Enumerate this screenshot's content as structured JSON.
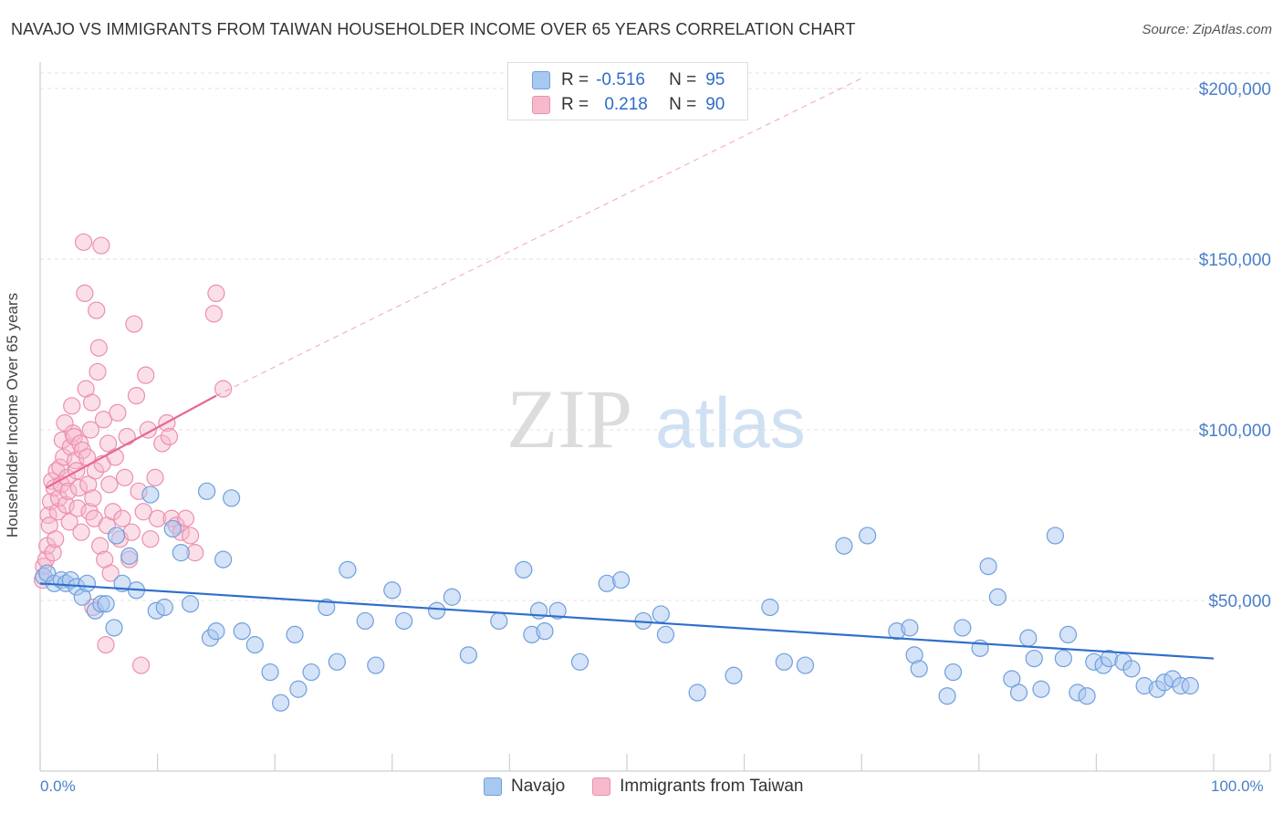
{
  "header": {
    "title": "NAVAJO VS IMMIGRANTS FROM TAIWAN HOUSEHOLDER INCOME OVER 65 YEARS CORRELATION CHART",
    "source": "Source: ZipAtlas.com"
  },
  "watermark": {
    "zip": "ZIP",
    "atlas": "atlas"
  },
  "legend_top": {
    "rows": [
      {
        "r_label": "R =",
        "r_value": "-0.516",
        "n_label": "N =",
        "n_value": "95"
      },
      {
        "r_label": "R =",
        "r_value": "0.218",
        "n_label": "N =",
        "n_value": "90"
      }
    ]
  },
  "legend_bottom": {
    "navajo": "Navajo",
    "taiwan": "Immigrants from Taiwan"
  },
  "axes": {
    "x_min_label": "0.0%",
    "x_max_label": "100.0%"
  },
  "colors": {
    "navajo_fill": "#a9c8ef",
    "navajo_stroke": "#6f9fdc",
    "navajo_line": "#2f6fcb",
    "taiwan_fill": "#f6b9cb",
    "taiwan_stroke": "#ec8fae",
    "taiwan_line": "#e8688f",
    "grid": "#e3e3e3",
    "tick_label": "#4a7fc9"
  },
  "chart_data": {
    "type": "scatter",
    "title": "NAVAJO VS IMMIGRANTS FROM TAIWAN HOUSEHOLDER INCOME OVER 65 YEARS CORRELATION CHART",
    "xlabel": "",
    "ylabel": "Householder Income Over 65 years",
    "xlim": [
      0,
      100
    ],
    "ylim": [
      0,
      200000
    ],
    "y_ticks": [
      50000,
      100000,
      150000,
      200000
    ],
    "y_tick_labels": [
      "$50,000",
      "$100,000",
      "$150,000",
      "$200,000"
    ],
    "x_tick_labels": [
      "0.0%",
      "100.0%"
    ],
    "grid": true,
    "legend_position": "top-center",
    "series": [
      {
        "name": "Navajo",
        "r": -0.516,
        "n": 95,
        "trend": {
          "x": [
            0,
            100
          ],
          "y": [
            55000,
            33000
          ]
        },
        "points": [
          [
            0.3,
            57000
          ],
          [
            0.6,
            58000
          ],
          [
            1.2,
            55000
          ],
          [
            1.8,
            56000
          ],
          [
            2.2,
            55000
          ],
          [
            2.6,
            56000
          ],
          [
            3.1,
            54000
          ],
          [
            3.6,
            51000
          ],
          [
            4,
            55000
          ],
          [
            4.7,
            47000
          ],
          [
            5.2,
            49000
          ],
          [
            5.6,
            49000
          ],
          [
            6.3,
            42000
          ],
          [
            6.5,
            69000
          ],
          [
            7,
            55000
          ],
          [
            7.6,
            63000
          ],
          [
            8.2,
            53000
          ],
          [
            9.4,
            81000
          ],
          [
            9.9,
            47000
          ],
          [
            10.6,
            48000
          ],
          [
            11.3,
            71000
          ],
          [
            12,
            64000
          ],
          [
            12.8,
            49000
          ],
          [
            14.2,
            82000
          ],
          [
            14.5,
            39000
          ],
          [
            15,
            41000
          ],
          [
            15.6,
            62000
          ],
          [
            16.3,
            80000
          ],
          [
            17.2,
            41000
          ],
          [
            18.3,
            37000
          ],
          [
            19.6,
            29000
          ],
          [
            20.5,
            20000
          ],
          [
            21.7,
            40000
          ],
          [
            22,
            24000
          ],
          [
            23.1,
            29000
          ],
          [
            24.4,
            48000
          ],
          [
            25.3,
            32000
          ],
          [
            26.2,
            59000
          ],
          [
            27.7,
            44000
          ],
          [
            28.6,
            31000
          ],
          [
            30,
            53000
          ],
          [
            31,
            44000
          ],
          [
            33.8,
            47000
          ],
          [
            35.1,
            51000
          ],
          [
            36.5,
            34000
          ],
          [
            39.1,
            44000
          ],
          [
            41.2,
            59000
          ],
          [
            41.9,
            40000
          ],
          [
            42.5,
            47000
          ],
          [
            43,
            41000
          ],
          [
            44.1,
            47000
          ],
          [
            46,
            32000
          ],
          [
            48.3,
            55000
          ],
          [
            49.5,
            56000
          ],
          [
            51.4,
            44000
          ],
          [
            52.9,
            46000
          ],
          [
            53.3,
            40000
          ],
          [
            56,
            23000
          ],
          [
            59.1,
            28000
          ],
          [
            62.2,
            48000
          ],
          [
            63.4,
            32000
          ],
          [
            65.2,
            31000
          ],
          [
            68.5,
            66000
          ],
          [
            70.5,
            69000
          ],
          [
            73,
            41000
          ],
          [
            74.1,
            42000
          ],
          [
            74.5,
            34000
          ],
          [
            74.9,
            30000
          ],
          [
            77.3,
            22000
          ],
          [
            77.8,
            29000
          ],
          [
            78.6,
            42000
          ],
          [
            80.1,
            36000
          ],
          [
            80.8,
            60000
          ],
          [
            81.6,
            51000
          ],
          [
            82.8,
            27000
          ],
          [
            83.4,
            23000
          ],
          [
            84.2,
            39000
          ],
          [
            84.7,
            33000
          ],
          [
            85.3,
            24000
          ],
          [
            86.5,
            69000
          ],
          [
            87.2,
            33000
          ],
          [
            87.6,
            40000
          ],
          [
            88.4,
            23000
          ],
          [
            89.2,
            22000
          ],
          [
            89.8,
            32000
          ],
          [
            90.6,
            31000
          ],
          [
            91.1,
            33000
          ],
          [
            92.3,
            32000
          ],
          [
            93,
            30000
          ],
          [
            94.1,
            25000
          ],
          [
            95.2,
            24000
          ],
          [
            95.8,
            26000
          ],
          [
            96.5,
            27000
          ],
          [
            97.2,
            25000
          ],
          [
            98,
            25000
          ]
        ]
      },
      {
        "name": "Immigrants from Taiwan",
        "r": 0.218,
        "n": 90,
        "trend": {
          "x": [
            0.5,
            15
          ],
          "y": [
            83000,
            110000
          ]
        },
        "trend_extension": {
          "x": [
            15,
            70
          ],
          "y": [
            110000,
            203000
          ]
        },
        "points": [
          [
            0.2,
            56000
          ],
          [
            0.3,
            60000
          ],
          [
            0.5,
            62000
          ],
          [
            0.6,
            66000
          ],
          [
            0.7,
            75000
          ],
          [
            0.8,
            72000
          ],
          [
            0.9,
            79000
          ],
          [
            1,
            85000
          ],
          [
            1.1,
            64000
          ],
          [
            1.2,
            83000
          ],
          [
            1.3,
            68000
          ],
          [
            1.4,
            88000
          ],
          [
            1.5,
            76000
          ],
          [
            1.6,
            80000
          ],
          [
            1.7,
            89000
          ],
          [
            1.8,
            84000
          ],
          [
            1.9,
            97000
          ],
          [
            2,
            92000
          ],
          [
            2.1,
            102000
          ],
          [
            2.2,
            78000
          ],
          [
            2.3,
            86000
          ],
          [
            2.4,
            82000
          ],
          [
            2.5,
            73000
          ],
          [
            2.6,
            95000
          ],
          [
            2.7,
            107000
          ],
          [
            2.8,
            99000
          ],
          [
            2.9,
            98000
          ],
          [
            3,
            91000
          ],
          [
            3.1,
            88000
          ],
          [
            3.2,
            77000
          ],
          [
            3.3,
            83000
          ],
          [
            3.4,
            96000
          ],
          [
            3.5,
            70000
          ],
          [
            3.6,
            94000
          ],
          [
            3.7,
            155000
          ],
          [
            3.8,
            140000
          ],
          [
            3.9,
            112000
          ],
          [
            4,
            92000
          ],
          [
            4.1,
            84000
          ],
          [
            4.2,
            76000
          ],
          [
            4.3,
            100000
          ],
          [
            4.4,
            108000
          ],
          [
            4.5,
            80000
          ],
          [
            4.6,
            74000
          ],
          [
            4.7,
            88000
          ],
          [
            4.8,
            135000
          ],
          [
            4.9,
            117000
          ],
          [
            5,
            124000
          ],
          [
            5.1,
            66000
          ],
          [
            5.2,
            154000
          ],
          [
            5.3,
            90000
          ],
          [
            5.4,
            103000
          ],
          [
            5.5,
            62000
          ],
          [
            5.6,
            37000
          ],
          [
            5.7,
            72000
          ],
          [
            5.8,
            96000
          ],
          [
            5.9,
            84000
          ],
          [
            6,
            58000
          ],
          [
            6.2,
            76000
          ],
          [
            6.4,
            92000
          ],
          [
            6.6,
            105000
          ],
          [
            6.8,
            68000
          ],
          [
            7,
            74000
          ],
          [
            7.2,
            86000
          ],
          [
            7.4,
            98000
          ],
          [
            7.6,
            62000
          ],
          [
            7.8,
            70000
          ],
          [
            8,
            131000
          ],
          [
            8.2,
            110000
          ],
          [
            8.4,
            82000
          ],
          [
            8.6,
            31000
          ],
          [
            8.8,
            76000
          ],
          [
            9,
            116000
          ],
          [
            9.2,
            100000
          ],
          [
            9.4,
            68000
          ],
          [
            9.8,
            86000
          ],
          [
            10,
            74000
          ],
          [
            10.4,
            96000
          ],
          [
            10.8,
            102000
          ],
          [
            11,
            98000
          ],
          [
            11.2,
            74000
          ],
          [
            11.6,
            72000
          ],
          [
            12,
            70000
          ],
          [
            12.4,
            74000
          ],
          [
            12.8,
            69000
          ],
          [
            13.2,
            64000
          ],
          [
            14.8,
            134000
          ],
          [
            15,
            140000
          ],
          [
            15.6,
            112000
          ],
          [
            4.5,
            48000
          ]
        ]
      }
    ]
  }
}
